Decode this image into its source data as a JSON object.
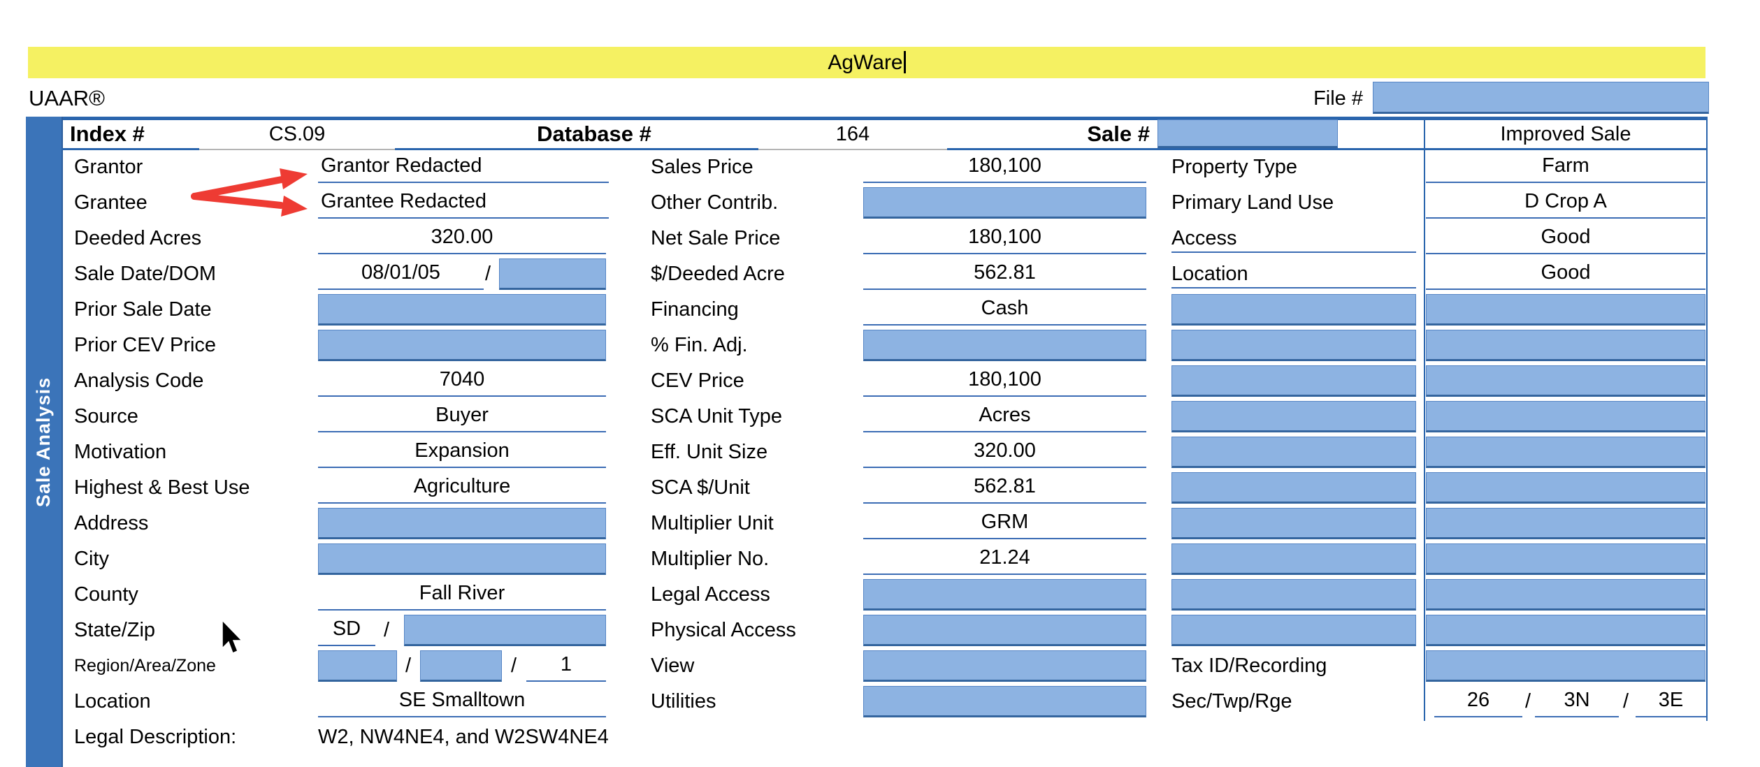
{
  "title_bar": {
    "text": "AgWare"
  },
  "branding": {
    "uaar": "UAAR®"
  },
  "file": {
    "label": "File #",
    "value": ""
  },
  "header": {
    "index_label": "Index #",
    "index_value": "CS.09",
    "database_label": "Database #",
    "database_value": "164",
    "sale_label": "Sale #",
    "sale_value": "",
    "sale_type": "Improved Sale"
  },
  "sidebar": {
    "label": "Sale Analysis"
  },
  "left_rows": [
    {
      "label": "Grantor",
      "type": "text",
      "value": "Grantor Redacted",
      "align": "left"
    },
    {
      "label": "Grantee",
      "type": "text",
      "value": "Grantee Redacted",
      "align": "left"
    },
    {
      "label": "Deeded Acres",
      "type": "text",
      "value": "320.00"
    },
    {
      "label": "Sale Date/DOM",
      "type": "date_dom",
      "value": "08/01/05",
      "dom_value": ""
    },
    {
      "label": "Prior Sale Date",
      "type": "box"
    },
    {
      "label": "Prior CEV Price",
      "type": "box"
    },
    {
      "label": "Analysis Code",
      "type": "text",
      "value": "7040"
    },
    {
      "label": "Source",
      "type": "text",
      "value": "Buyer"
    },
    {
      "label": "Motivation",
      "type": "text",
      "value": "Expansion"
    },
    {
      "label": "Highest & Best Use",
      "type": "text",
      "value": "Agriculture"
    },
    {
      "label": "Address",
      "type": "box"
    },
    {
      "label": "City",
      "type": "box"
    },
    {
      "label": "County",
      "type": "text",
      "value": "Fall River"
    },
    {
      "label": "State/Zip",
      "type": "state_zip",
      "value": "SD",
      "zip_value": ""
    },
    {
      "label": "Region/Area/Zone",
      "type": "region_area_zone",
      "region_value": "",
      "area_value": "",
      "zone_value": "1",
      "small": true
    },
    {
      "label": "Location",
      "type": "text",
      "value": "SE Smalltown"
    },
    {
      "label": "Legal Description:",
      "type": "legal",
      "value": "W2, NW4NE4, and W2SW4NE4"
    }
  ],
  "mid_rows": [
    {
      "label": "Sales Price",
      "type": "text",
      "value": "180,100"
    },
    {
      "label": "Other Contrib.",
      "type": "box"
    },
    {
      "label": "Net Sale Price",
      "type": "text",
      "value": "180,100"
    },
    {
      "label": "$/Deeded Acre",
      "type": "text",
      "value": "562.81"
    },
    {
      "label": "Financing",
      "type": "text",
      "value": "Cash"
    },
    {
      "label": "% Fin. Adj.",
      "type": "box"
    },
    {
      "label": "CEV Price",
      "type": "text",
      "value": "180,100"
    },
    {
      "label": "SCA Unit Type",
      "type": "text",
      "value": "Acres"
    },
    {
      "label": "Eff. Unit Size",
      "type": "text",
      "value": "320.00"
    },
    {
      "label": "SCA $/Unit",
      "type": "text",
      "value": "562.81"
    },
    {
      "label": "Multiplier Unit",
      "type": "text",
      "value": "GRM"
    },
    {
      "label": "Multiplier No.",
      "type": "text",
      "value": "21.24"
    },
    {
      "label": "Legal Access",
      "type": "box"
    },
    {
      "label": "Physical Access",
      "type": "box"
    },
    {
      "label": "View",
      "type": "box"
    },
    {
      "label": "Utilities",
      "type": "box"
    }
  ],
  "right_rows": [
    {
      "label": "Property Type",
      "type": "text",
      "value": "Farm"
    },
    {
      "label": "Primary Land Use",
      "type": "text",
      "value": "D Crop A"
    },
    {
      "label": "Access",
      "type": "text",
      "value": "Good",
      "label_underline": true
    },
    {
      "label": "Location",
      "type": "text",
      "value": "Good",
      "label_underline": true
    },
    {
      "type": "boxpair"
    },
    {
      "type": "boxpair"
    },
    {
      "type": "boxpair"
    },
    {
      "type": "boxpair"
    },
    {
      "type": "boxpair"
    },
    {
      "type": "boxpair"
    },
    {
      "type": "boxpair"
    },
    {
      "type": "boxpair"
    },
    {
      "type": "boxpair"
    },
    {
      "type": "boxpair"
    },
    {
      "label": "Tax ID/Recording",
      "type": "box"
    },
    {
      "label": "Sec/Twp/Rge",
      "type": "sec_twp_rge",
      "values": [
        "26",
        "3N",
        "3E"
      ]
    }
  ],
  "annotations": {
    "redaction_arrows": {
      "color": "#ee3b33",
      "points_to": [
        "Grantor Redacted",
        "Grantee Redacted"
      ]
    }
  },
  "colors": {
    "highlight_yellow": "#f5f162",
    "field_blue": "#8db3e2",
    "table_border_blue": "#2a65ad",
    "sidebar_blue": "#3b74b9",
    "underline_blue": "#3b6cb4",
    "arrow_red": "#ee3b33"
  }
}
